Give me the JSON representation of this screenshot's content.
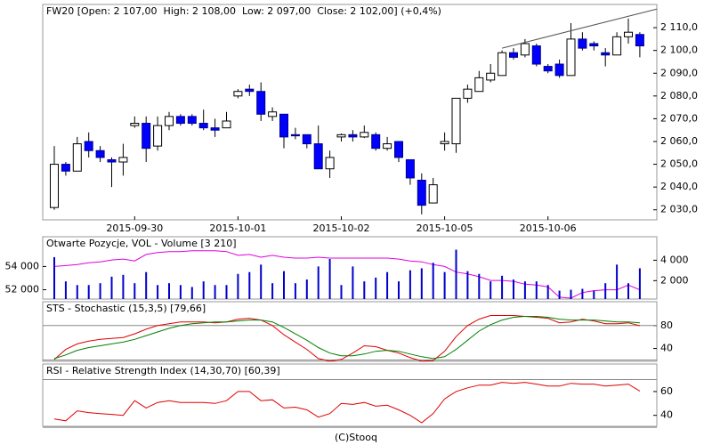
{
  "chart_data": [
    {
      "type": "candlestick",
      "title": "FW20 [Open: 2 107,00  High: 2 108,00  Low: 2 097,00  Close: 2 102,00] (+0,4%)",
      "categories": [
        null,
        null,
        null,
        null,
        null,
        null,
        null,
        "2015-09-30",
        null,
        null,
        null,
        null,
        null,
        null,
        null,
        null,
        "2015-10-01",
        null,
        null,
        null,
        null,
        null,
        null,
        null,
        null,
        "2015-10-02",
        null,
        null,
        null,
        null,
        null,
        null,
        null,
        null,
        "2015-10-05",
        null,
        null,
        null,
        null,
        null,
        null,
        null,
        null,
        "2015-10-06",
        null,
        null,
        null,
        null,
        null,
        null,
        null,
        null
      ],
      "open": [
        2031,
        2050,
        2047,
        2060,
        2056,
        2052,
        2051,
        2067,
        2068,
        2058,
        2067,
        2071,
        2071,
        2068,
        2066,
        2066,
        2080,
        2083,
        2082,
        2071,
        2072,
        2063,
        2063,
        2059,
        2048,
        2062,
        2063,
        2062,
        2063,
        2057,
        2060,
        2052,
        2043,
        2033,
        2059,
        2059,
        2079,
        2082,
        2087,
        2089,
        2099,
        2098,
        2102,
        2093,
        2094,
        2089,
        2105,
        2103,
        2099,
        2098,
        2106,
        2107
      ],
      "high": [
        2058,
        2051,
        2062,
        2064,
        2058,
        2053,
        2059,
        2071,
        2071,
        2071,
        2073,
        2072,
        2072,
        2074,
        2070,
        2073,
        2083,
        2085,
        2086,
        2075,
        2072,
        2066,
        2063,
        2067,
        2056,
        2063.5,
        2065,
        2067,
        2064,
        2062,
        2060,
        2052,
        2046,
        2044,
        2064,
        2079,
        2085,
        2091,
        2094,
        2100,
        2101,
        2105,
        2103,
        2094,
        2096,
        2112,
        2108,
        2104,
        2101,
        2108,
        2114,
        2108
      ],
      "low": [
        2030,
        2045,
        2047,
        2053,
        2051,
        2040,
        2045,
        2066,
        2051,
        2056,
        2065,
        2067,
        2067,
        2065,
        2062,
        2066,
        2079,
        2080,
        2069,
        2069,
        2057,
        2061,
        2057,
        2048,
        2044,
        2060,
        2060,
        2061.5,
        2056,
        2056,
        2051,
        2041,
        2028,
        2033,
        2056,
        2055,
        2077,
        2082,
        2086,
        2089,
        2096,
        2097,
        2093,
        2090,
        2088,
        2089,
        2100,
        2100,
        2093,
        2098,
        2103,
        2097
      ],
      "close": [
        2050,
        2047,
        2059,
        2056,
        2053,
        2051,
        2053,
        2068,
        2057,
        2067,
        2071,
        2068,
        2068,
        2066,
        2065,
        2069,
        2082,
        2082,
        2072,
        2073,
        2062,
        2062.5,
        2059,
        2048,
        2053,
        2063,
        2062,
        2064,
        2057,
        2059,
        2053,
        2044,
        2032,
        2041,
        2060,
        2079,
        2083,
        2088,
        2090,
        2099,
        2097,
        2103,
        2094,
        2091,
        2089,
        2105,
        2101,
        2102,
        2098,
        2106,
        2108,
        2102
      ],
      "up_color": "#ffffff",
      "down_color": "#0000ff",
      "ylim": [
        2025.6,
        2120.2
      ],
      "yticks": [
        {
          "value": 2030,
          "label": "2 030,0"
        },
        {
          "value": 2040,
          "label": "2 040,0"
        },
        {
          "value": 2050,
          "label": "2 050,0"
        },
        {
          "value": 2060,
          "label": "2 060,0"
        },
        {
          "value": 2070,
          "label": "2 070,0"
        },
        {
          "value": 2080,
          "label": "2 080,0"
        },
        {
          "value": 2090,
          "label": "2 090,0"
        },
        {
          "value": 2100,
          "label": "2 100,0"
        },
        {
          "value": 2110,
          "label": "2 110,0"
        }
      ],
      "trendline": {
        "x": [
          39,
          52.5
        ],
        "y": [
          2101,
          2118.2
        ]
      }
    },
    {
      "type": "volume",
      "title": "Otwarte Pozycje, VOL - Volume [3 210]",
      "series": [
        {
          "color": "#e000e0",
          "kind": "line",
          "values": [
            54000,
            54080,
            54160,
            54320,
            54400,
            54560,
            54640,
            54480,
            55040,
            55200,
            55280,
            55280,
            55360,
            55360,
            55360,
            55280,
            54960,
            55040,
            54800,
            54960,
            54800,
            54720,
            54720,
            54800,
            54720,
            54720,
            54720,
            54720,
            54720,
            54720,
            54640,
            54480,
            54400,
            54160,
            54000,
            53520,
            53360,
            53120,
            52800,
            52800,
            52720,
            52480,
            52400,
            52240,
            51360,
            51280,
            51760,
            51920,
            52000,
            52000,
            52400,
            52000
          ]
        },
        {
          "color": "#0000cc",
          "kind": "bar",
          "axis": "y2",
          "values": [
            4300,
            1930,
            1570,
            1570,
            1750,
            2390,
            2570,
            1750,
            2840,
            1570,
            1750,
            1570,
            1380,
            1930,
            1570,
            1570,
            2660,
            2840,
            3570,
            1750,
            2930,
            1750,
            2110,
            3390,
            4120,
            1570,
            3390,
            1930,
            2300,
            2840,
            1930,
            3020,
            3210,
            3750,
            2840,
            5030,
            2930,
            2660,
            1930,
            2480,
            2110,
            1930,
            1930,
            1570,
            1020,
            1110,
            1200,
            1020,
            1750,
            3570,
            1750,
            3210
          ]
        }
      ],
      "ylim": [
        51200,
        56560
      ],
      "yticks": [
        {
          "value": 52000,
          "label": "52 000"
        },
        {
          "value": 54000,
          "label": "54 000"
        }
      ],
      "y2lim": [
        200,
        6300
      ],
      "y2ticks": [
        {
          "value": 2000,
          "label": "2 000"
        },
        {
          "value": 4000,
          "label": "4 000"
        }
      ]
    },
    {
      "type": "line",
      "title": "STS - Stochastic (15,3,5) [79,66]",
      "series": [
        {
          "color": "#e00000",
          "values": [
            20.8,
            38.4,
            48,
            52.8,
            56,
            57.6,
            59.2,
            65.6,
            73.6,
            80,
            83.2,
            86.4,
            86.4,
            86.4,
            84.8,
            86.4,
            91.2,
            92.8,
            89.6,
            80,
            64,
            51.2,
            38.4,
            22.4,
            18,
            20.8,
            32,
            44.8,
            43.2,
            36.8,
            32,
            24,
            18,
            19,
            35.2,
            60.8,
            80,
            91.2,
            97.6,
            97.6,
            97.6,
            96,
            94.4,
            92.8,
            84.8,
            86.4,
            91.2,
            88,
            83.2,
            83.2,
            84.8,
            79.7
          ]
        },
        {
          "color": "#008000",
          "values": [
            22.4,
            28.8,
            36.8,
            41.6,
            44.8,
            48,
            51.2,
            56,
            62.4,
            68.8,
            75.2,
            80,
            83.2,
            84.8,
            86.4,
            86.4,
            88,
            89.6,
            89.6,
            86.4,
            76.8,
            65.6,
            54.4,
            41.6,
            32,
            27.2,
            27.2,
            30.4,
            35.2,
            36.8,
            35.2,
            30.4,
            25.6,
            22.4,
            25.6,
            38.4,
            54.4,
            70.4,
            81.6,
            89.6,
            94.4,
            96,
            96,
            94.4,
            91.2,
            89.6,
            89.6,
            89.6,
            88,
            86.4,
            86.4,
            84.8
          ]
        }
      ],
      "ylim": [
        17.6,
        121.6
      ],
      "yticks": [
        40,
        80
      ],
      "levels": [
        80,
        20
      ]
    },
    {
      "type": "line",
      "title": "RSI - Relative Strength Index (14,30,70) [60,39]",
      "series": [
        {
          "color": "#e00000",
          "values": [
            36.9,
            35.4,
            43.8,
            42.3,
            41.5,
            40.8,
            40,
            52.3,
            46.2,
            50.8,
            52.3,
            50.8,
            50.8,
            50.8,
            50,
            52.3,
            60,
            60,
            52.3,
            53.1,
            46.2,
            46.9,
            44.6,
            38.5,
            41.5,
            50,
            49.2,
            50.8,
            47.7,
            48.5,
            44.6,
            40,
            33.8,
            41.5,
            53.8,
            60,
            63.1,
            65.4,
            65.4,
            67.7,
            66.9,
            67.7,
            66.2,
            64.6,
            64.6,
            66.9,
            66.2,
            66.2,
            64.6,
            65.4,
            66.2,
            60.4
          ]
        }
      ],
      "ylim": [
        30.8,
        83.1
      ],
      "yticks": [
        40,
        60
      ],
      "levels": [
        70,
        30
      ]
    }
  ],
  "footer": "(C)Stooq"
}
